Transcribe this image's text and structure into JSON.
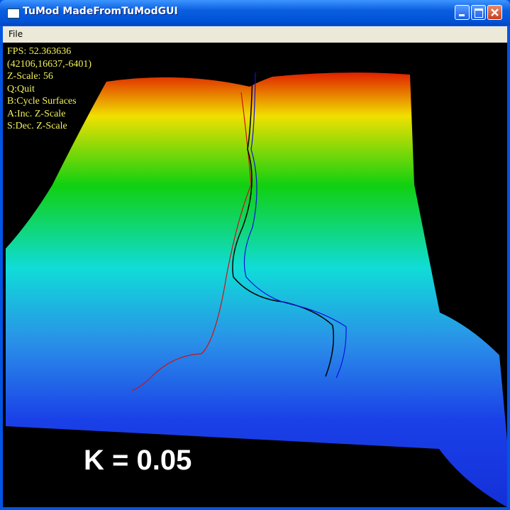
{
  "window": {
    "title": "TuMod MadeFromTuModGUI",
    "menu": [
      "File"
    ]
  },
  "overlay": {
    "lines": [
      "FPS: 52.363636",
      "(42106,16637,-6401)",
      "Z-Scale: 56",
      "Q:Quit",
      "B:Cycle Surfaces",
      "A:Inc. Z-Scale",
      "S:Dec. Z-Scale"
    ]
  },
  "caption": "K = 0.05"
}
